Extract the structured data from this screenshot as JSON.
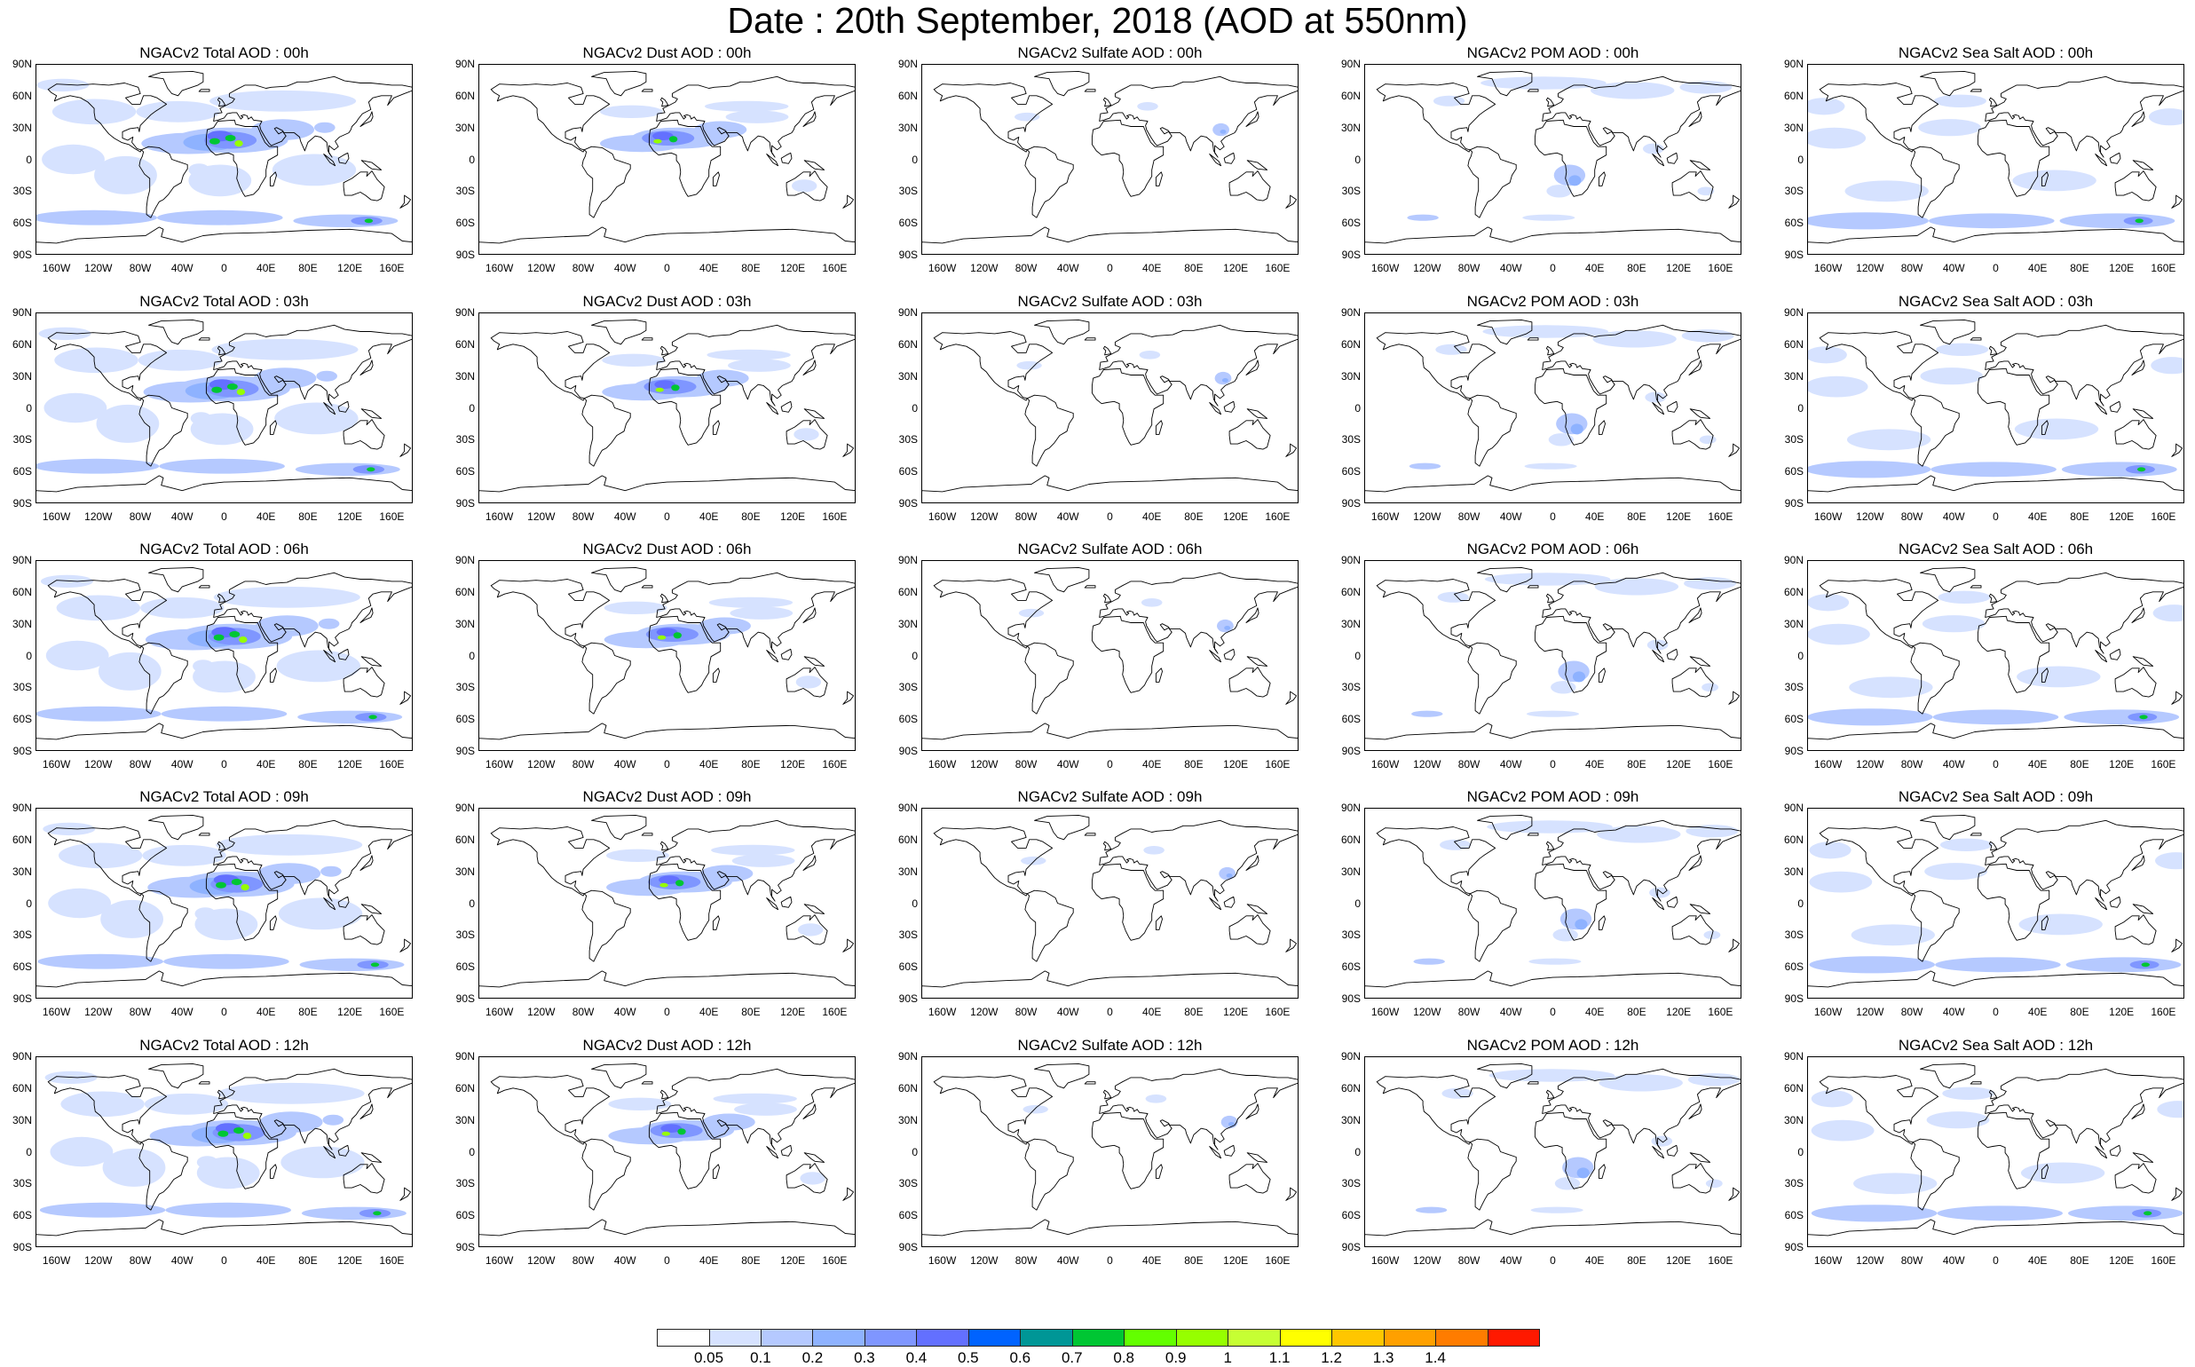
{
  "title": "Date : 20th September, 2018 (AOD at 550nm)",
  "map_axes": {
    "lat_labels": [
      "90N",
      "60N",
      "30N",
      "0",
      "30S",
      "60S",
      "90S"
    ],
    "lon_labels": [
      "160W",
      "120W",
      "80W",
      "40W",
      "0",
      "40E",
      "80E",
      "120E",
      "160E"
    ]
  },
  "panels": [
    {
      "title": "NGACv2 Total AOD : 00h",
      "species": "total",
      "hour": "00h"
    },
    {
      "title": "NGACv2 Dust AOD : 00h",
      "species": "dust",
      "hour": "00h"
    },
    {
      "title": "NGACv2 Sulfate AOD : 00h",
      "species": "sulfate",
      "hour": "00h"
    },
    {
      "title": "NGACv2 POM AOD : 00h",
      "species": "pom",
      "hour": "00h"
    },
    {
      "title": "NGACv2 Sea Salt AOD : 00h",
      "species": "seasalt",
      "hour": "00h"
    },
    {
      "title": "NGACv2 Total AOD : 03h",
      "species": "total",
      "hour": "03h"
    },
    {
      "title": "NGACv2 Dust AOD : 03h",
      "species": "dust",
      "hour": "03h"
    },
    {
      "title": "NGACv2 Sulfate AOD : 03h",
      "species": "sulfate",
      "hour": "03h"
    },
    {
      "title": "NGACv2 POM AOD : 03h",
      "species": "pom",
      "hour": "03h"
    },
    {
      "title": "NGACv2 Sea Salt AOD : 03h",
      "species": "seasalt",
      "hour": "03h"
    },
    {
      "title": "NGACv2 Total AOD : 06h",
      "species": "total",
      "hour": "06h"
    },
    {
      "title": "NGACv2 Dust AOD : 06h",
      "species": "dust",
      "hour": "06h"
    },
    {
      "title": "NGACv2 Sulfate AOD : 06h",
      "species": "sulfate",
      "hour": "06h"
    },
    {
      "title": "NGACv2 POM AOD : 06h",
      "species": "pom",
      "hour": "06h"
    },
    {
      "title": "NGACv2 Sea Salt AOD : 06h",
      "species": "seasalt",
      "hour": "06h"
    },
    {
      "title": "NGACv2 Total AOD : 09h",
      "species": "total",
      "hour": "09h"
    },
    {
      "title": "NGACv2 Dust AOD : 09h",
      "species": "dust",
      "hour": "09h"
    },
    {
      "title": "NGACv2 Sulfate AOD : 09h",
      "species": "sulfate",
      "hour": "09h"
    },
    {
      "title": "NGACv2 POM AOD : 09h",
      "species": "pom",
      "hour": "09h"
    },
    {
      "title": "NGACv2 Sea Salt  AOD : 09h",
      "species": "seasalt",
      "hour": "09h"
    },
    {
      "title": "NGACv2 Total AOD :  12h",
      "species": "total",
      "hour": "12h"
    },
    {
      "title": "NGACv2 Dust AOD : 12h",
      "species": "dust",
      "hour": "12h"
    },
    {
      "title": "NGACv2 Sulfate AOD : 12h",
      "species": "sulfate",
      "hour": "12h"
    },
    {
      "title": "NGACv2 POM  AOD : 12h",
      "species": "pom",
      "hour": "12h"
    },
    {
      "title": "NGACv2 Sea Salt  AOD : 12h",
      "species": "seasalt",
      "hour": "12h"
    }
  ],
  "colorbar": {
    "labels": [
      "0.05",
      "0.1",
      "0.2",
      "0.3",
      "0.4",
      "0.5",
      "0.6",
      "0.7",
      "0.8",
      "0.9",
      "1",
      "1.1",
      "1.2",
      "1.3",
      "1.4"
    ],
    "colors": [
      "#ffffff",
      "#d6e2ff",
      "#b5c9ff",
      "#8eb2ff",
      "#7f96ff",
      "#6370ff",
      "#0063ff",
      "#009696",
      "#00c633",
      "#63ff00",
      "#96ff00",
      "#c6ff33",
      "#ffff00",
      "#ffc600",
      "#ffa000",
      "#ff7c00",
      "#ff1900"
    ]
  }
}
